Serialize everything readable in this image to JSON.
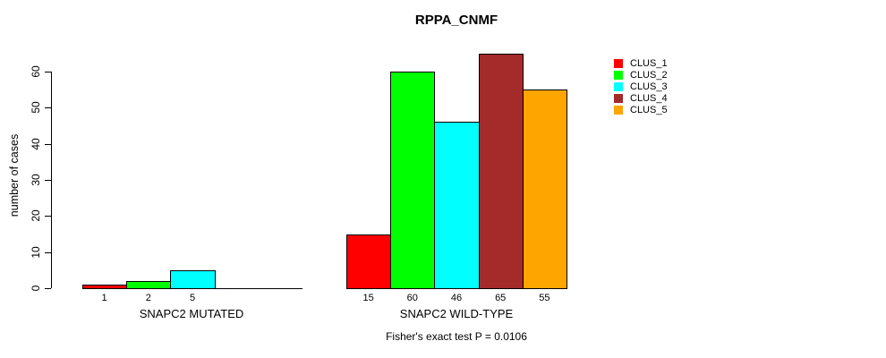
{
  "chart_data": {
    "type": "bar",
    "title": "RPPA_CNMF",
    "ylabel": "number of cases",
    "xlabel": "",
    "ylim": [
      0,
      65
    ],
    "y_ticks": [
      0,
      10,
      20,
      30,
      40,
      50,
      60
    ],
    "grid": false,
    "legend_position": "right",
    "series_names": [
      "CLUS_1",
      "CLUS_2",
      "CLUS_3",
      "CLUS_4",
      "CLUS_5"
    ],
    "series_colors": [
      "#FF0000",
      "#00FF00",
      "#00FFFF",
      "#A52A2A",
      "#FFA500"
    ],
    "groups": [
      {
        "label": "SNAPC2 MUTATED",
        "values": [
          1,
          2,
          5,
          0,
          0
        ],
        "bar_labels": [
          "1",
          "2",
          "5",
          "",
          ""
        ]
      },
      {
        "label": "SNAPC2 WILD-TYPE",
        "values": [
          15,
          60,
          46,
          65,
          55
        ],
        "bar_labels": [
          "15",
          "60",
          "46",
          "65",
          "55"
        ]
      }
    ],
    "annotation": "Fisher's exact test P = 0.0106"
  }
}
